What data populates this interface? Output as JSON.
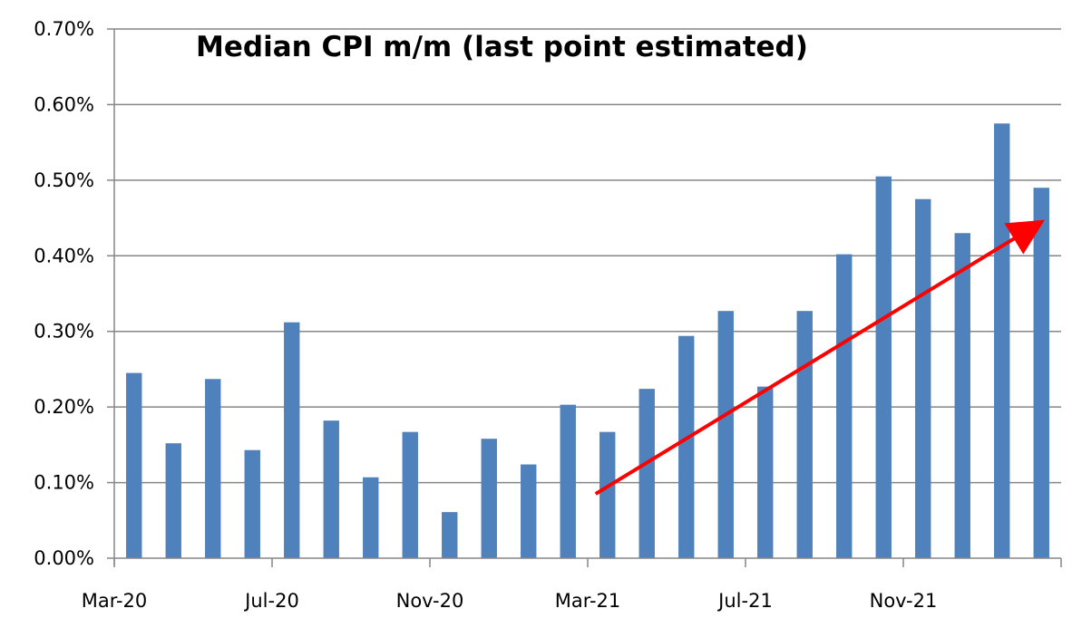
{
  "chart_data": {
    "type": "bar",
    "title": "Median CPI m/m (last point estimated)",
    "xlabel": "",
    "ylabel": "",
    "ylim": [
      0,
      0.7
    ],
    "y_ticks": [
      "0.00%",
      "0.10%",
      "0.20%",
      "0.30%",
      "0.40%",
      "0.50%",
      "0.60%",
      "0.70%"
    ],
    "y_tick_values": [
      0,
      0.1,
      0.2,
      0.3,
      0.4,
      0.5,
      0.6,
      0.7
    ],
    "x_tick_labels": [
      "Mar-20",
      "Jul-20",
      "Nov-20",
      "Mar-21",
      "Jul-21",
      "Nov-21"
    ],
    "x_tick_months": [
      "2020-03",
      "2020-07",
      "2020-11",
      "2021-03",
      "2021-07",
      "2021-11"
    ],
    "months": [
      "2020-03",
      "2020-04",
      "2020-05",
      "2020-06",
      "2020-07",
      "2020-08",
      "2020-09",
      "2020-10",
      "2020-11",
      "2020-12",
      "2021-01",
      "2021-02",
      "2021-03",
      "2021-04",
      "2021-05",
      "2021-06",
      "2021-07",
      "2021-08",
      "2021-09",
      "2021-10",
      "2021-11",
      "2021-12",
      "2022-01",
      "2022-02"
    ],
    "values": [
      0.245,
      0.152,
      0.237,
      0.143,
      0.312,
      0.182,
      0.107,
      0.167,
      0.061,
      0.158,
      0.124,
      0.203,
      0.167,
      0.224,
      0.294,
      0.327,
      0.227,
      0.327,
      0.402,
      0.505,
      0.475,
      0.43,
      0.575,
      0.49
    ],
    "grid": true,
    "legend": "none",
    "bar_color": "#4f81bd",
    "trend_arrow": {
      "from": [
        "2021-03",
        0.085
      ],
      "to": [
        "2022-02",
        0.44
      ],
      "color": "#ff0000"
    }
  }
}
